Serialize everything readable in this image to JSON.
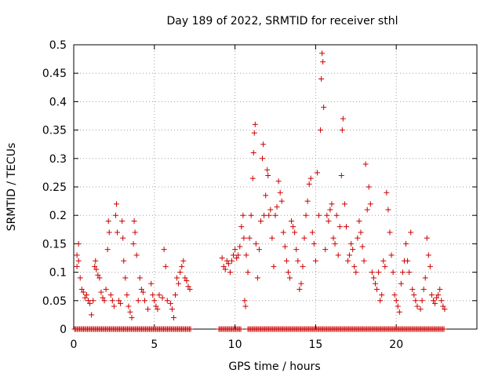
{
  "chart_data": {
    "type": "scatter",
    "title": "Day 189 of 2022, SRMTID for receiver sthl",
    "xlabel": "GPS time / hours",
    "ylabel": "SRMTID / TECUs",
    "xlim": [
      0,
      25
    ],
    "ylim": [
      0,
      0.5
    ],
    "xticks": [
      0,
      5,
      10,
      15,
      20
    ],
    "yticks": [
      0,
      0.05,
      0.1,
      0.15,
      0.2,
      0.25,
      0.3,
      0.35,
      0.4,
      0.45,
      0.5
    ],
    "grid": true,
    "marker": "+",
    "color": "#cc0000",
    "series": [
      {
        "name": "SRMTID",
        "points": [
          [
            0.2,
            0.13
          ],
          [
            0.2,
            0.11
          ],
          [
            0.3,
            0.15
          ],
          [
            0.3,
            0.12
          ],
          [
            0.4,
            0.09
          ],
          [
            0.5,
            0.07
          ],
          [
            0.6,
            0.065
          ],
          [
            0.7,
            0.055
          ],
          [
            0.8,
            0.06
          ],
          [
            0.9,
            0.05
          ],
          [
            1.0,
            0.045
          ],
          [
            1.1,
            0.025
          ],
          [
            1.2,
            0.05
          ],
          [
            1.3,
            0.11
          ],
          [
            1.35,
            0.12
          ],
          [
            1.4,
            0.105
          ],
          [
            1.5,
            0.095
          ],
          [
            1.6,
            0.09
          ],
          [
            1.7,
            0.065
          ],
          [
            1.8,
            0.055
          ],
          [
            1.9,
            0.05
          ],
          [
            2.0,
            0.07
          ],
          [
            2.1,
            0.14
          ],
          [
            2.15,
            0.19
          ],
          [
            2.2,
            0.17
          ],
          [
            2.3,
            0.06
          ],
          [
            2.4,
            0.05
          ],
          [
            2.5,
            0.04
          ],
          [
            2.6,
            0.2
          ],
          [
            2.65,
            0.22
          ],
          [
            2.7,
            0.17
          ],
          [
            2.8,
            0.05
          ],
          [
            2.9,
            0.045
          ],
          [
            3.0,
            0.19
          ],
          [
            3.05,
            0.16
          ],
          [
            3.1,
            0.12
          ],
          [
            3.2,
            0.09
          ],
          [
            3.3,
            0.06
          ],
          [
            3.4,
            0.04
          ],
          [
            3.5,
            0.03
          ],
          [
            3.6,
            0.02
          ],
          [
            3.7,
            0.15
          ],
          [
            3.75,
            0.19
          ],
          [
            3.8,
            0.17
          ],
          [
            3.9,
            0.13
          ],
          [
            4.0,
            0.05
          ],
          [
            4.1,
            0.09
          ],
          [
            4.2,
            0.07
          ],
          [
            4.3,
            0.065
          ],
          [
            4.4,
            0.05
          ],
          [
            4.6,
            0.035
          ],
          [
            4.8,
            0.08
          ],
          [
            4.9,
            0.06
          ],
          [
            5.0,
            0.05
          ],
          [
            5.1,
            0.04
          ],
          [
            5.2,
            0.035
          ],
          [
            5.3,
            0.06
          ],
          [
            5.5,
            0.055
          ],
          [
            5.6,
            0.14
          ],
          [
            5.7,
            0.11
          ],
          [
            5.8,
            0.05
          ],
          [
            6.0,
            0.045
          ],
          [
            6.1,
            0.035
          ],
          [
            6.2,
            0.02
          ],
          [
            6.3,
            0.06
          ],
          [
            6.4,
            0.09
          ],
          [
            6.5,
            0.08
          ],
          [
            6.6,
            0.1
          ],
          [
            6.7,
            0.11
          ],
          [
            6.8,
            0.12
          ],
          [
            6.9,
            0.09
          ],
          [
            7.0,
            0.085
          ],
          [
            7.1,
            0.075
          ],
          [
            7.2,
            0.07
          ],
          [
            9.2,
            0.125
          ],
          [
            9.3,
            0.11
          ],
          [
            9.4,
            0.105
          ],
          [
            9.5,
            0.12
          ],
          [
            9.6,
            0.115
          ],
          [
            9.7,
            0.1
          ],
          [
            9.8,
            0.12
          ],
          [
            9.9,
            0.13
          ],
          [
            10.0,
            0.14
          ],
          [
            10.1,
            0.125
          ],
          [
            10.2,
            0.13
          ],
          [
            10.3,
            0.145
          ],
          [
            10.4,
            0.18
          ],
          [
            10.5,
            0.2
          ],
          [
            10.55,
            0.16
          ],
          [
            10.6,
            0.05
          ],
          [
            10.65,
            0.04
          ],
          [
            10.7,
            0.13
          ],
          [
            10.8,
            0.1
          ],
          [
            10.9,
            0.16
          ],
          [
            11.0,
            0.2
          ],
          [
            11.1,
            0.265
          ],
          [
            11.15,
            0.31
          ],
          [
            11.2,
            0.345
          ],
          [
            11.25,
            0.36
          ],
          [
            11.3,
            0.15
          ],
          [
            11.4,
            0.09
          ],
          [
            11.5,
            0.14
          ],
          [
            11.6,
            0.19
          ],
          [
            11.7,
            0.3
          ],
          [
            11.75,
            0.325
          ],
          [
            11.8,
            0.2
          ],
          [
            11.9,
            0.235
          ],
          [
            12.0,
            0.28
          ],
          [
            12.05,
            0.27
          ],
          [
            12.1,
            0.2
          ],
          [
            12.2,
            0.21
          ],
          [
            12.3,
            0.16
          ],
          [
            12.4,
            0.11
          ],
          [
            12.5,
            0.2
          ],
          [
            12.6,
            0.215
          ],
          [
            12.7,
            0.26
          ],
          [
            12.8,
            0.24
          ],
          [
            12.9,
            0.225
          ],
          [
            13.0,
            0.17
          ],
          [
            13.1,
            0.145
          ],
          [
            13.2,
            0.12
          ],
          [
            13.3,
            0.1
          ],
          [
            13.4,
            0.09
          ],
          [
            13.5,
            0.19
          ],
          [
            13.6,
            0.18
          ],
          [
            13.7,
            0.17
          ],
          [
            13.8,
            0.14
          ],
          [
            13.9,
            0.12
          ],
          [
            14.0,
            0.07
          ],
          [
            14.1,
            0.08
          ],
          [
            14.2,
            0.11
          ],
          [
            14.3,
            0.16
          ],
          [
            14.4,
            0.2
          ],
          [
            14.5,
            0.225
          ],
          [
            14.6,
            0.255
          ],
          [
            14.7,
            0.265
          ],
          [
            14.8,
            0.17
          ],
          [
            14.9,
            0.15
          ],
          [
            15.0,
            0.12
          ],
          [
            15.1,
            0.275
          ],
          [
            15.2,
            0.2
          ],
          [
            15.3,
            0.35
          ],
          [
            15.35,
            0.44
          ],
          [
            15.4,
            0.485
          ],
          [
            15.45,
            0.47
          ],
          [
            15.5,
            0.39
          ],
          [
            15.6,
            0.14
          ],
          [
            15.7,
            0.2
          ],
          [
            15.8,
            0.19
          ],
          [
            15.9,
            0.21
          ],
          [
            16.0,
            0.22
          ],
          [
            16.1,
            0.16
          ],
          [
            16.2,
            0.15
          ],
          [
            16.3,
            0.2
          ],
          [
            16.4,
            0.13
          ],
          [
            16.5,
            0.18
          ],
          [
            16.6,
            0.27
          ],
          [
            16.65,
            0.35
          ],
          [
            16.7,
            0.37
          ],
          [
            16.8,
            0.22
          ],
          [
            16.9,
            0.18
          ],
          [
            17.0,
            0.12
          ],
          [
            17.1,
            0.13
          ],
          [
            17.2,
            0.15
          ],
          [
            17.3,
            0.14
          ],
          [
            17.4,
            0.11
          ],
          [
            17.5,
            0.1
          ],
          [
            17.6,
            0.16
          ],
          [
            17.7,
            0.19
          ],
          [
            17.8,
            0.17
          ],
          [
            17.9,
            0.145
          ],
          [
            18.0,
            0.12
          ],
          [
            18.1,
            0.29
          ],
          [
            18.2,
            0.21
          ],
          [
            18.3,
            0.25
          ],
          [
            18.4,
            0.22
          ],
          [
            18.5,
            0.1
          ],
          [
            18.6,
            0.09
          ],
          [
            18.7,
            0.08
          ],
          [
            18.8,
            0.07
          ],
          [
            18.9,
            0.1
          ],
          [
            19.0,
            0.05
          ],
          [
            19.1,
            0.06
          ],
          [
            19.2,
            0.12
          ],
          [
            19.3,
            0.11
          ],
          [
            19.4,
            0.24
          ],
          [
            19.5,
            0.21
          ],
          [
            19.6,
            0.17
          ],
          [
            19.7,
            0.13
          ],
          [
            19.8,
            0.1
          ],
          [
            19.9,
            0.06
          ],
          [
            20.0,
            0.05
          ],
          [
            20.1,
            0.04
          ],
          [
            20.2,
            0.03
          ],
          [
            20.3,
            0.08
          ],
          [
            20.4,
            0.1
          ],
          [
            20.5,
            0.12
          ],
          [
            20.6,
            0.15
          ],
          [
            20.7,
            0.12
          ],
          [
            20.8,
            0.1
          ],
          [
            20.9,
            0.17
          ],
          [
            21.0,
            0.07
          ],
          [
            21.1,
            0.06
          ],
          [
            21.2,
            0.05
          ],
          [
            21.3,
            0.04
          ],
          [
            21.5,
            0.035
          ],
          [
            21.6,
            0.05
          ],
          [
            21.7,
            0.07
          ],
          [
            21.8,
            0.09
          ],
          [
            21.9,
            0.16
          ],
          [
            22.0,
            0.13
          ],
          [
            22.1,
            0.11
          ],
          [
            22.2,
            0.06
          ],
          [
            22.3,
            0.05
          ],
          [
            22.4,
            0.045
          ],
          [
            22.5,
            0.055
          ],
          [
            22.6,
            0.06
          ],
          [
            22.7,
            0.07
          ],
          [
            22.8,
            0.05
          ],
          [
            22.9,
            0.04
          ],
          [
            23.0,
            0.035
          ]
        ],
        "zero_segments": [
          [
            0.05,
            7.25
          ],
          [
            9.0,
            10.4
          ],
          [
            10.8,
            23.0
          ]
        ]
      }
    ]
  }
}
